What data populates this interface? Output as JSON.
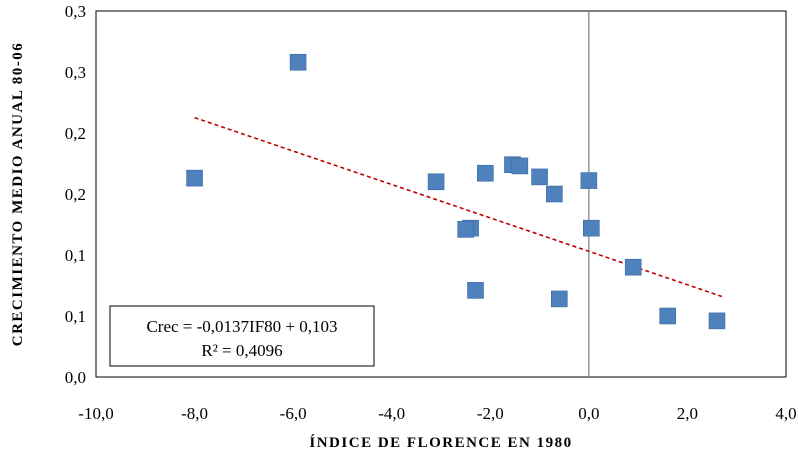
{
  "chart_data": {
    "type": "scatter",
    "title": "",
    "xlabel": "ÍNDICE DE FLORENCE EN 1980",
    "ylabel": "CRECIMIENTO MEDIO ANUAL 80-06",
    "xlim": [
      -10,
      4
    ],
    "x_ticks": [
      -10,
      -8,
      -6,
      -4,
      -2,
      0,
      2,
      4
    ],
    "x_tick_labels": [
      "-10,0",
      "-8,0",
      "-6,0",
      "-4,0",
      "-2,0",
      "0,0",
      "2,0",
      "4,0"
    ],
    "ylim": [
      0,
      0.3
    ],
    "y_ticks": [
      0,
      0.05,
      0.1,
      0.15,
      0.2,
      0.25,
      0.3
    ],
    "y_tick_labels": [
      "0,0",
      "0,1",
      "0,1",
      "0,2",
      "0,2",
      "0,3",
      "0,3"
    ],
    "grid": false,
    "legend": "none",
    "marker_color": "#4f81bd",
    "trendline_color": "#c00000",
    "points": [
      {
        "x": -8.0,
        "y": 0.163
      },
      {
        "x": -5.9,
        "y": 0.258
      },
      {
        "x": -3.1,
        "y": 0.16
      },
      {
        "x": -2.4,
        "y": 0.122
      },
      {
        "x": -2.5,
        "y": 0.121
      },
      {
        "x": -2.3,
        "y": 0.071
      },
      {
        "x": -2.1,
        "y": 0.167
      },
      {
        "x": -1.55,
        "y": 0.174
      },
      {
        "x": -1.4,
        "y": 0.173
      },
      {
        "x": -1.0,
        "y": 0.164
      },
      {
        "x": -0.7,
        "y": 0.15
      },
      {
        "x": -0.6,
        "y": 0.064
      },
      {
        "x": 0.0,
        "y": 0.161
      },
      {
        "x": 0.05,
        "y": 0.122
      },
      {
        "x": 0.9,
        "y": 0.09
      },
      {
        "x": 1.6,
        "y": 0.05
      },
      {
        "x": 2.6,
        "y": 0.046
      }
    ],
    "trendline": {
      "style": "dashed",
      "x_range": [
        -8.0,
        2.7
      ],
      "slope": -0.0137,
      "intercept": 0.103,
      "equation_label": "Crec = -0,0137IF80 + 0,103",
      "r2_label": "R² = 0,4096"
    }
  }
}
